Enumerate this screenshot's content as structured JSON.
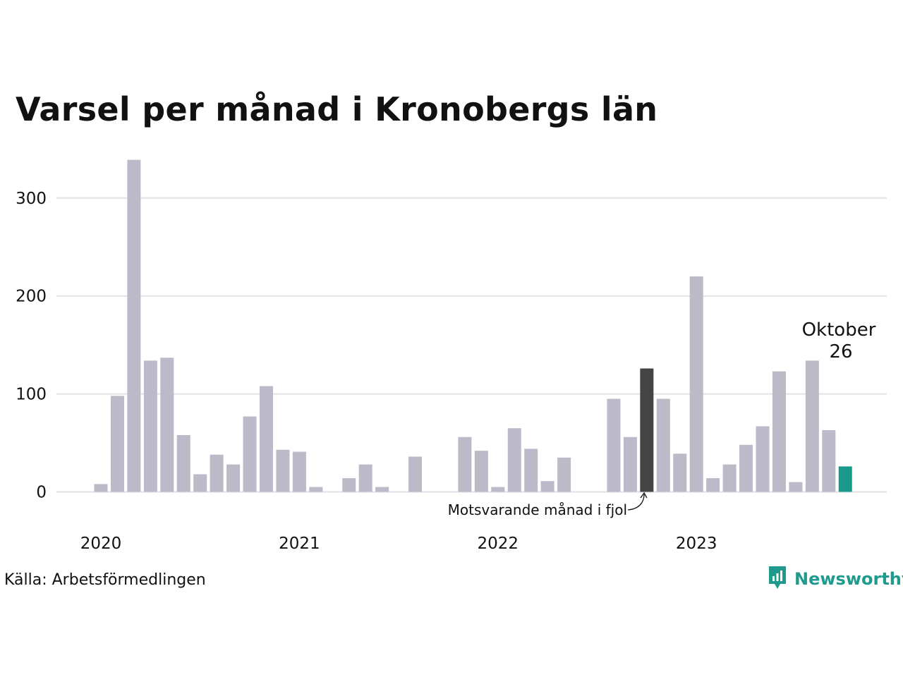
{
  "title": "Varsel per månad i Kronobergs län",
  "source": "Källa: Arbetsförmedlingen",
  "brand": "Newsworthy",
  "colors": {
    "bar_default": "#bcbac9",
    "bar_previous_year": "#444444",
    "bar_latest": "#1a9a8c",
    "grid": "#e2e2e6",
    "brand": "#1f9a8c"
  },
  "chart_data": {
    "type": "bar",
    "title": "Varsel per månad i Kronobergs län",
    "xlabel": "",
    "ylabel": "",
    "ylim": [
      0,
      340
    ],
    "y_ticks": [
      0,
      100,
      200,
      300
    ],
    "x_tick_labels": [
      "2020",
      "2021",
      "2022",
      "2023"
    ],
    "grid": true,
    "categories": [
      "2020-01",
      "2020-02",
      "2020-03",
      "2020-04",
      "2020-05",
      "2020-06",
      "2020-07",
      "2020-08",
      "2020-09",
      "2020-10",
      "2020-11",
      "2020-12",
      "2021-01",
      "2021-02",
      "2021-03",
      "2021-04",
      "2021-05",
      "2021-06",
      "2021-07",
      "2021-08",
      "2021-09",
      "2021-10",
      "2021-11",
      "2021-12",
      "2022-01",
      "2022-02",
      "2022-03",
      "2022-04",
      "2022-05",
      "2022-06",
      "2022-07",
      "2022-08",
      "2022-09",
      "2022-10",
      "2022-11",
      "2022-12",
      "2023-01",
      "2023-02",
      "2023-03",
      "2023-04",
      "2023-05",
      "2023-06",
      "2023-07",
      "2023-08",
      "2023-09",
      "2023-10"
    ],
    "values": [
      8,
      98,
      339,
      134,
      137,
      58,
      18,
      38,
      28,
      77,
      108,
      43,
      41,
      5,
      0,
      14,
      28,
      5,
      0,
      36,
      0,
      0,
      56,
      42,
      5,
      65,
      44,
      11,
      35,
      0,
      0,
      95,
      56,
      126,
      95,
      39,
      220,
      14,
      28,
      48,
      67,
      123,
      10,
      134,
      63,
      26
    ],
    "highlight_previous_year": "2022-10",
    "highlight_latest": "2023-10",
    "annotations": {
      "latest_month": "Oktober",
      "latest_value": "26",
      "previous_year_label": "Motsvarande månad i fjol"
    }
  }
}
